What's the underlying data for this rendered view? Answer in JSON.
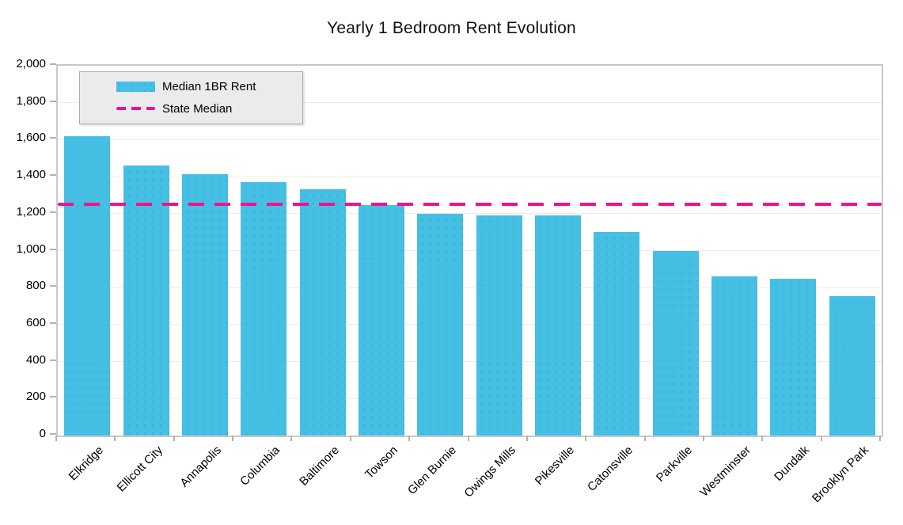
{
  "title": "Yearly 1 Bedroom Rent Evolution",
  "legend": {
    "items": [
      {
        "label": "Median 1BR Rent",
        "swatch": "bar-swatch",
        "color": "#45bfe4"
      },
      {
        "label": "State Median",
        "swatch": "dashed-line-swatch",
        "color": "#f2128c"
      }
    ]
  },
  "chart_data": {
    "type": "bar",
    "title": "Yearly 1 Bedroom Rent Evolution",
    "categories": [
      "Elkridge",
      "Ellicott City",
      "Annapolis",
      "Columbia",
      "Baltimore",
      "Towson",
      "Glen Burnie",
      "Owings Mills",
      "Pikesville",
      "Catonsville",
      "Parkville",
      "Westminster",
      "Dundalk",
      "Brooklyn Park"
    ],
    "series": [
      {
        "name": "Median 1BR Rent",
        "type": "bar",
        "color": "#45bfe4",
        "values": [
          1620,
          1460,
          1415,
          1370,
          1330,
          1245,
          1200,
          1190,
          1190,
          1100,
          1000,
          860,
          850,
          755
        ]
      },
      {
        "name": "State Median",
        "type": "dashed_line",
        "color": "#f2128c",
        "value": 1250
      }
    ],
    "xlabel": "",
    "ylabel": "",
    "ylim": [
      0,
      2000
    ],
    "ytick_step": 200,
    "ytick_labels": [
      "0",
      "200",
      "400",
      "600",
      "800",
      "1,000",
      "1,200",
      "1,400",
      "1,600",
      "1,800",
      "2,000"
    ],
    "grid": "horizontal",
    "legend_position": "inside-top-left",
    "x_label_rotation_deg": -45
  },
  "colors": {
    "bar": "#45bfe4",
    "state_median_line": "#f2128c",
    "legend_background": "#ebebeb",
    "legend_border": "#adadad",
    "gridline": "#ececec",
    "plot_border": "#c9c9c9",
    "tick": "#b3b3b3",
    "text": "#000000"
  }
}
